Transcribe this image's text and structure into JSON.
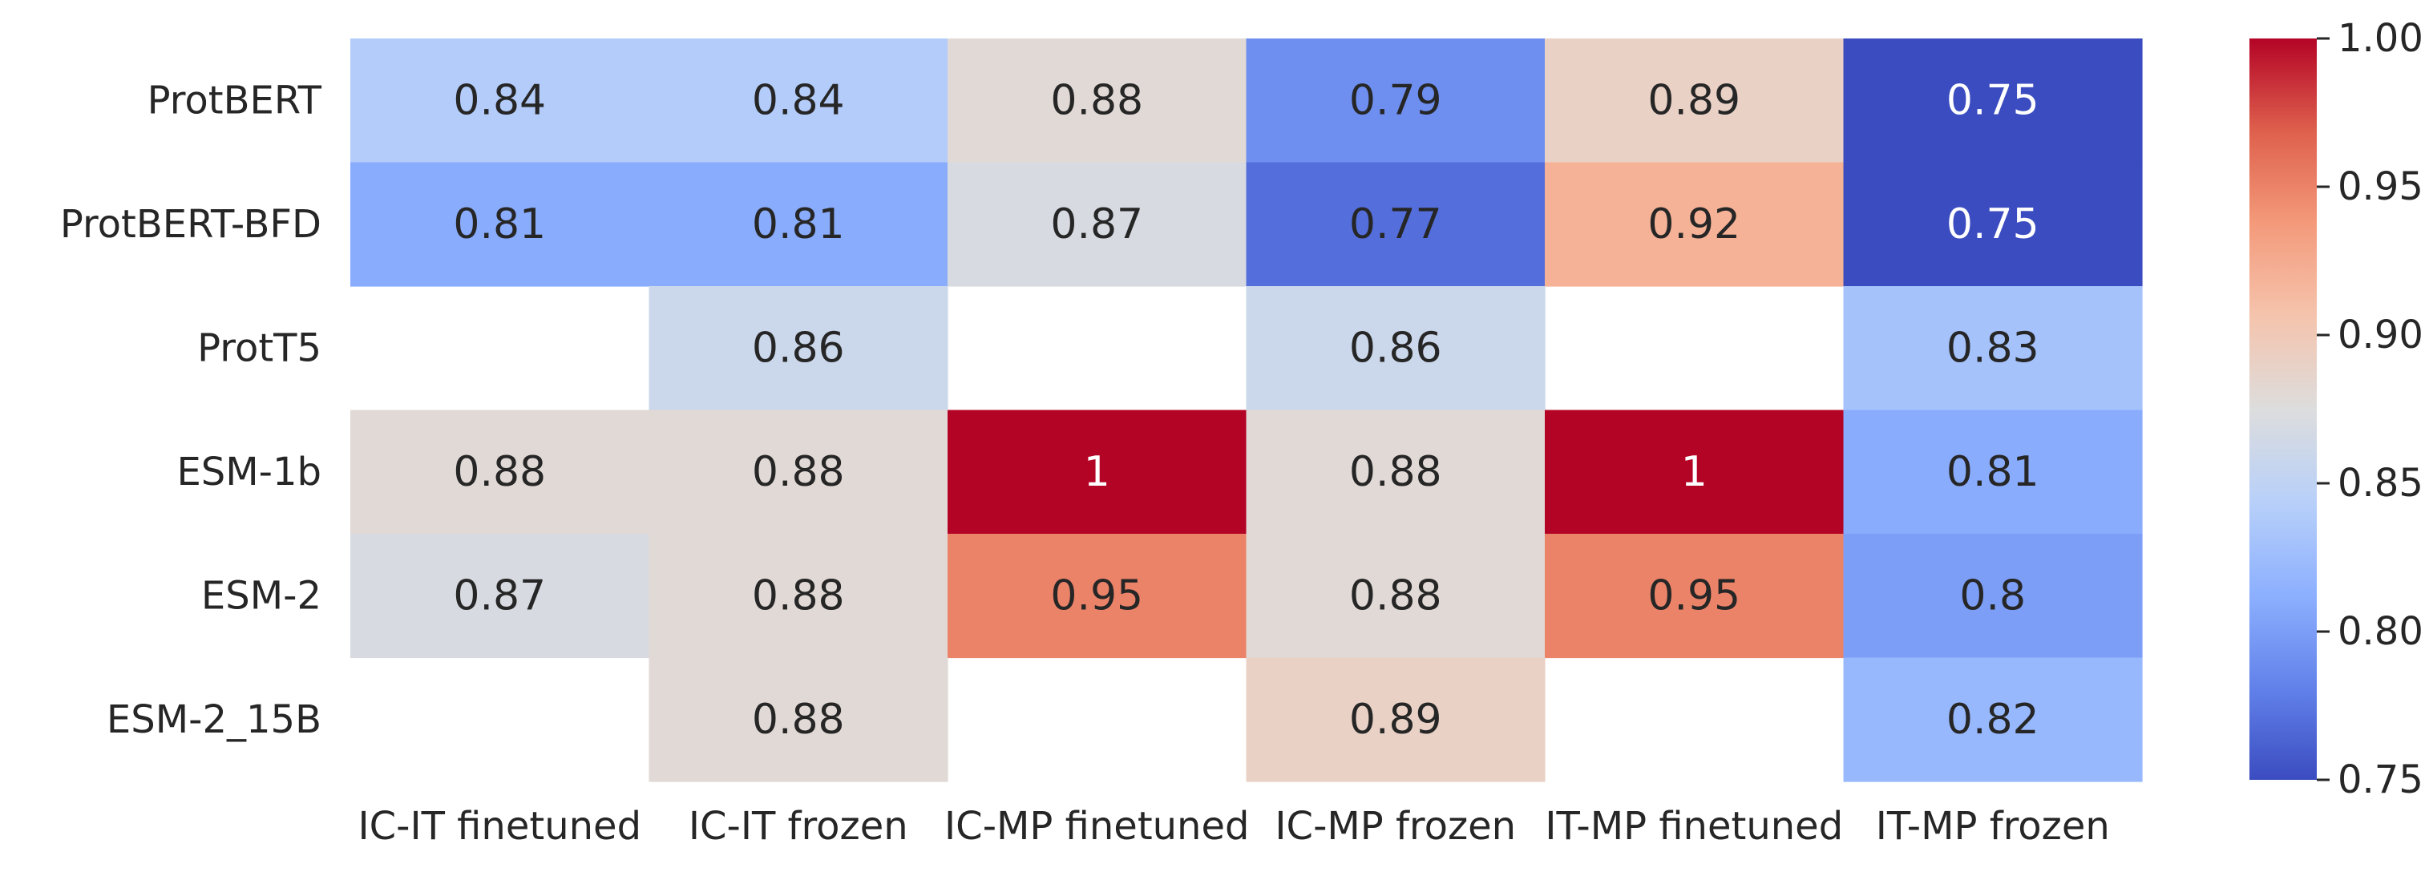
{
  "chart_data": {
    "type": "heatmap",
    "title": "",
    "xlabel": "",
    "ylabel": "",
    "rows": [
      "ProtBERT",
      "ProtBERT-BFD",
      "ProtT5",
      "ESM-1b",
      "ESM-2",
      "ESM-2_15B"
    ],
    "columns": [
      "IC-IT finetuned",
      "IC-IT frozen",
      "IC-MP finetuned",
      "IC-MP frozen",
      "IT-MP finetuned",
      "IT-MP frozen"
    ],
    "values": [
      [
        0.84,
        0.84,
        0.88,
        0.79,
        0.89,
        0.75
      ],
      [
        0.81,
        0.81,
        0.87,
        0.77,
        0.92,
        0.75
      ],
      [
        null,
        0.86,
        null,
        0.86,
        null,
        0.83
      ],
      [
        0.88,
        0.88,
        1.0,
        0.88,
        1.0,
        0.81
      ],
      [
        0.87,
        0.88,
        0.95,
        0.88,
        0.95,
        0.8
      ],
      [
        null,
        0.88,
        null,
        0.89,
        null,
        0.82
      ]
    ],
    "labels": [
      [
        "0.84",
        "0.84",
        "0.88",
        "0.79",
        "0.89",
        "0.75"
      ],
      [
        "0.81",
        "0.81",
        "0.87",
        "0.77",
        "0.92",
        "0.75"
      ],
      [
        "",
        "0.86",
        "",
        "0.86",
        "",
        "0.83"
      ],
      [
        "0.88",
        "0.88",
        "1",
        "0.88",
        "1",
        "0.81"
      ],
      [
        "0.87",
        "0.88",
        "0.95",
        "0.88",
        "0.95",
        "0.8"
      ],
      [
        "",
        "0.88",
        "",
        "0.89",
        "",
        "0.82"
      ]
    ],
    "colorbar": {
      "colormap": "coolwarm",
      "range": [
        0.75,
        1.0
      ],
      "ticks": [
        0.75,
        0.8,
        0.85,
        0.9,
        0.95,
        1.0
      ],
      "tick_labels": [
        "0.75",
        "0.80",
        "0.85",
        "0.90",
        "0.95",
        "1.00"
      ]
    },
    "grid": false,
    "legend": "colorbar-right"
  }
}
